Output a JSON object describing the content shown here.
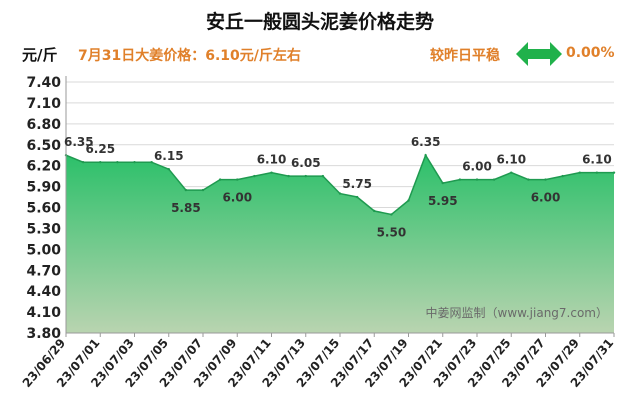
{
  "header": {
    "title": "安丘一般圆头泥姜价格走势",
    "unit": "元/斤",
    "price_text": "7月31日大姜价格：6.10元/斤左右",
    "trend_text": "较昨日平稳",
    "change_text": "0.00%",
    "trend_icon": "double-arrow-icon"
  },
  "colors": {
    "accent_text": "#e0802a",
    "area_top": "#2cc06a",
    "area_bottom": "#b9d4b0",
    "line": "#1f9a50",
    "arrow": "#20b14b"
  },
  "chart_data": {
    "type": "area",
    "watermark": "中姜网监制（www.jiang7.com）",
    "ylim": [
      3.8,
      7.4
    ],
    "yticks": [
      3.8,
      4.1,
      4.4,
      4.7,
      5.0,
      5.3,
      5.6,
      5.9,
      6.2,
      6.5,
      6.8,
      7.1,
      7.4
    ],
    "ytick_labels": [
      "3.80",
      "4.10",
      "4.40",
      "4.70",
      "5.00",
      "5.30",
      "5.60",
      "5.90",
      "6.20",
      "6.50",
      "6.80",
      "7.10",
      "7.40"
    ],
    "xtick_labels": [
      "23/06/29",
      "23/07/01",
      "23/07/03",
      "23/07/05",
      "23/07/07",
      "23/07/09",
      "23/07/11",
      "23/07/13",
      "23/07/15",
      "23/07/17",
      "23/07/19",
      "23/07/21",
      "23/07/23",
      "23/07/25",
      "23/07/27",
      "23/07/29",
      "23/07/31"
    ],
    "x": [
      "23/06/29",
      "23/06/30",
      "23/07/01",
      "23/07/02",
      "23/07/03",
      "23/07/04",
      "23/07/05",
      "23/07/06",
      "23/07/07",
      "23/07/08",
      "23/07/09",
      "23/07/10",
      "23/07/11",
      "23/07/12",
      "23/07/13",
      "23/07/14",
      "23/07/15",
      "23/07/16",
      "23/07/17",
      "23/07/18",
      "23/07/19",
      "23/07/20",
      "23/07/21",
      "23/07/22",
      "23/07/23",
      "23/07/24",
      "23/07/25",
      "23/07/26",
      "23/07/27",
      "23/07/28",
      "23/07/29",
      "23/07/30",
      "23/07/31"
    ],
    "values": [
      6.35,
      6.25,
      6.25,
      6.25,
      6.25,
      6.25,
      6.15,
      5.85,
      5.85,
      6.0,
      6.0,
      6.05,
      6.1,
      6.05,
      6.05,
      6.05,
      5.8,
      5.75,
      5.55,
      5.5,
      5.7,
      6.35,
      5.95,
      6.0,
      6.0,
      6.0,
      6.1,
      6.0,
      6.0,
      6.05,
      6.1,
      6.1,
      6.1
    ],
    "data_labels": [
      {
        "x": "23/06/29",
        "text": "6.35"
      },
      {
        "x": "23/07/01",
        "text": "6.25"
      },
      {
        "x": "23/07/05",
        "text": "6.15"
      },
      {
        "x": "23/07/06",
        "text": "5.85"
      },
      {
        "x": "23/07/09",
        "text": "6.00"
      },
      {
        "x": "23/07/11",
        "text": "6.10"
      },
      {
        "x": "23/07/13",
        "text": "6.05"
      },
      {
        "x": "23/07/16",
        "text": "5.75"
      },
      {
        "x": "23/07/18",
        "text": "5.50"
      },
      {
        "x": "23/07/20",
        "text": "6.35"
      },
      {
        "x": "23/07/21",
        "text": "5.95"
      },
      {
        "x": "23/07/23",
        "text": "6.00"
      },
      {
        "x": "23/07/25",
        "text": "6.10"
      },
      {
        "x": "23/07/27",
        "text": "6.00"
      },
      {
        "x": "23/07/30",
        "text": "6.10"
      }
    ]
  }
}
